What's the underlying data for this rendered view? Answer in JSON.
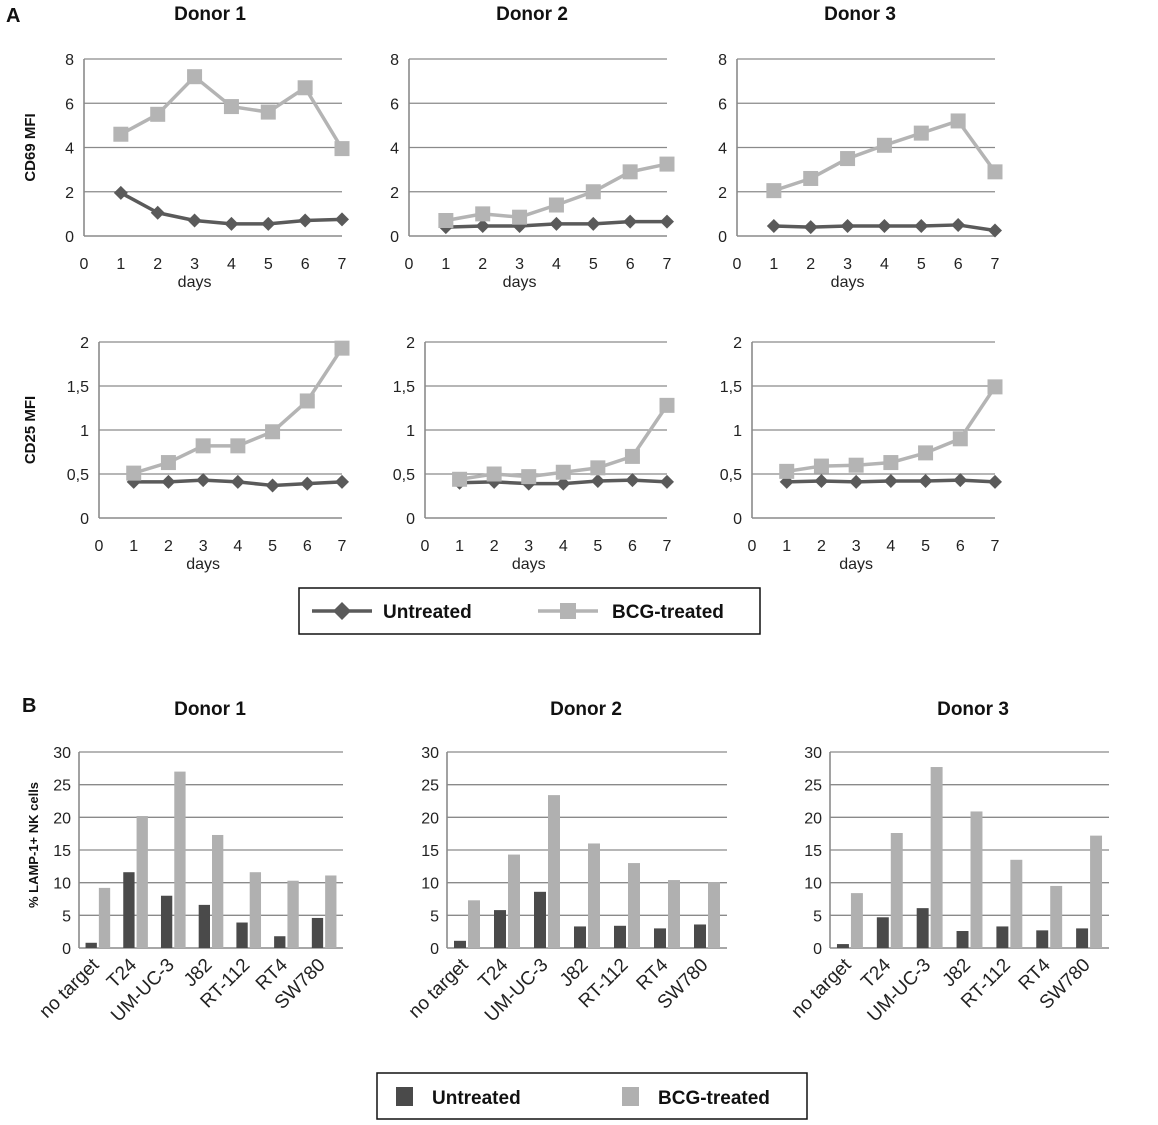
{
  "panel_a": {
    "letter": "A",
    "colors": {
      "untreated": "#5a5a5a",
      "bcg": "#b4b4b4",
      "grid": "#8a8a8a"
    },
    "legend": {
      "untreated": "Untreated",
      "bcg": "BCG-treated"
    }
  },
  "panel_b": {
    "letter": "B",
    "colors": {
      "untreated": "#4a4a4a",
      "bcg": "#b0b0b0",
      "grid": "#8a8a8a"
    },
    "legend": {
      "untreated": "Untreated",
      "bcg": "BCG-treated"
    }
  },
  "chart_data": [
    {
      "id": "a-cd69-d1",
      "type": "line",
      "title": "Donor 1",
      "ylabel": "CD69 MFI",
      "xlabel": "days",
      "x": [
        1,
        2,
        3,
        4,
        5,
        6,
        7
      ],
      "xlim": [
        0,
        7
      ],
      "ylim": [
        0,
        8
      ],
      "xticks": [
        "0",
        "1",
        "2",
        "3",
        "4",
        "5",
        "6",
        "7"
      ],
      "yticks": [
        "0",
        "2",
        "4",
        "6",
        "8"
      ],
      "series": [
        {
          "name": "Untreated",
          "values": [
            1.95,
            1.05,
            0.7,
            0.55,
            0.55,
            0.7,
            0.75
          ]
        },
        {
          "name": "BCG-treated",
          "values": [
            4.6,
            5.5,
            7.2,
            5.85,
            5.6,
            6.7,
            3.95
          ]
        }
      ]
    },
    {
      "id": "a-cd69-d2",
      "type": "line",
      "title": "Donor 2",
      "ylabel": "",
      "xlabel": "days",
      "x": [
        1,
        2,
        3,
        4,
        5,
        6,
        7
      ],
      "xlim": [
        0,
        7
      ],
      "ylim": [
        0,
        8
      ],
      "xticks": [
        "0",
        "1",
        "2",
        "3",
        "4",
        "5",
        "6",
        "7"
      ],
      "yticks": [
        "0",
        "2",
        "4",
        "6",
        "8"
      ],
      "series": [
        {
          "name": "Untreated",
          "values": [
            0.4,
            0.45,
            0.45,
            0.55,
            0.55,
            0.65,
            0.65
          ]
        },
        {
          "name": "BCG-treated",
          "values": [
            0.7,
            1.0,
            0.85,
            1.4,
            2.0,
            2.9,
            3.25
          ]
        }
      ]
    },
    {
      "id": "a-cd69-d3",
      "type": "line",
      "title": "Donor 3",
      "ylabel": "",
      "xlabel": "days",
      "x": [
        1,
        2,
        3,
        4,
        5,
        6,
        7
      ],
      "xlim": [
        0,
        7
      ],
      "ylim": [
        0,
        8
      ],
      "xticks": [
        "0",
        "1",
        "2",
        "3",
        "4",
        "5",
        "6",
        "7"
      ],
      "yticks": [
        "0",
        "2",
        "4",
        "6",
        "8"
      ],
      "series": [
        {
          "name": "Untreated",
          "values": [
            0.45,
            0.4,
            0.45,
            0.45,
            0.45,
            0.5,
            0.25
          ]
        },
        {
          "name": "BCG-treated",
          "values": [
            2.05,
            2.6,
            3.5,
            4.1,
            4.65,
            5.2,
            2.9
          ]
        }
      ]
    },
    {
      "id": "a-cd25-d1",
      "type": "line",
      "title": "",
      "ylabel": "CD25 MFI",
      "xlabel": "days",
      "x": [
        1,
        2,
        3,
        4,
        5,
        6,
        7
      ],
      "xlim": [
        0,
        7
      ],
      "ylim": [
        0,
        2
      ],
      "xticks": [
        "0",
        "1",
        "2",
        "3",
        "4",
        "5",
        "6",
        "7"
      ],
      "yticks": [
        "0",
        "0,5",
        "1",
        "1,5",
        "2"
      ],
      "series": [
        {
          "name": "Untreated",
          "values": [
            0.41,
            0.41,
            0.43,
            0.41,
            0.37,
            0.39,
            0.41
          ]
        },
        {
          "name": "BCG-treated",
          "values": [
            0.51,
            0.63,
            0.82,
            0.82,
            0.98,
            1.33,
            1.93
          ]
        }
      ]
    },
    {
      "id": "a-cd25-d2",
      "type": "line",
      "title": "",
      "ylabel": "",
      "xlabel": "days",
      "x": [
        1,
        2,
        3,
        4,
        5,
        6,
        7
      ],
      "xlim": [
        0,
        7
      ],
      "ylim": [
        0,
        2
      ],
      "xticks": [
        "0",
        "1",
        "2",
        "3",
        "4",
        "5",
        "6",
        "7"
      ],
      "yticks": [
        "0",
        "0,5",
        "1",
        "1,5",
        "2"
      ],
      "series": [
        {
          "name": "Untreated",
          "values": [
            0.4,
            0.41,
            0.39,
            0.39,
            0.42,
            0.43,
            0.41
          ]
        },
        {
          "name": "BCG-treated",
          "values": [
            0.44,
            0.5,
            0.47,
            0.52,
            0.57,
            0.7,
            1.28
          ]
        }
      ]
    },
    {
      "id": "a-cd25-d3",
      "type": "line",
      "title": "",
      "ylabel": "",
      "xlabel": "days",
      "x": [
        1,
        2,
        3,
        4,
        5,
        6,
        7
      ],
      "xlim": [
        0,
        7
      ],
      "ylim": [
        0,
        2
      ],
      "xticks": [
        "0",
        "1",
        "2",
        "3",
        "4",
        "5",
        "6",
        "7"
      ],
      "yticks": [
        "0",
        "0,5",
        "1",
        "1,5",
        "2"
      ],
      "series": [
        {
          "name": "Untreated",
          "values": [
            0.41,
            0.42,
            0.41,
            0.42,
            0.42,
            0.43,
            0.41
          ]
        },
        {
          "name": "BCG-treated",
          "values": [
            0.53,
            0.59,
            0.6,
            0.63,
            0.74,
            0.9,
            1.49
          ]
        }
      ]
    },
    {
      "id": "b-d1",
      "type": "bar",
      "title": "Donor 1",
      "ylabel": "% LAMP-1+ NK cells",
      "xlabel": "",
      "categories": [
        "no target",
        "T24",
        "UM-UC-3",
        "J82",
        "RT-112",
        "RT4",
        "SW780"
      ],
      "ylim": [
        0,
        30
      ],
      "yticks": [
        "0",
        "5",
        "10",
        "15",
        "20",
        "25",
        "30"
      ],
      "series": [
        {
          "name": "Untreated",
          "values": [
            0.8,
            11.6,
            8.0,
            6.6,
            3.9,
            1.8,
            4.6
          ]
        },
        {
          "name": "BCG-treated",
          "values": [
            9.2,
            20.2,
            27.0,
            17.3,
            11.6,
            10.3,
            11.1
          ]
        }
      ]
    },
    {
      "id": "b-d2",
      "type": "bar",
      "title": "Donor 2",
      "ylabel": "",
      "xlabel": "",
      "categories": [
        "no target",
        "T24",
        "UM-UC-3",
        "J82",
        "RT-112",
        "RT4",
        "SW780"
      ],
      "ylim": [
        0,
        30
      ],
      "yticks": [
        "0",
        "5",
        "10",
        "15",
        "20",
        "25",
        "30"
      ],
      "series": [
        {
          "name": "Untreated",
          "values": [
            1.1,
            5.8,
            8.6,
            3.3,
            3.4,
            3.0,
            3.6
          ]
        },
        {
          "name": "BCG-treated",
          "values": [
            7.3,
            14.3,
            23.4,
            16.0,
            13.0,
            10.4,
            10.1
          ]
        }
      ]
    },
    {
      "id": "b-d3",
      "type": "bar",
      "title": "Donor 3",
      "ylabel": "",
      "xlabel": "",
      "categories": [
        "no target",
        "T24",
        "UM-UC-3",
        "J82",
        "RT-112",
        "RT4",
        "SW780"
      ],
      "ylim": [
        0,
        30
      ],
      "yticks": [
        "0",
        "5",
        "10",
        "15",
        "20",
        "25",
        "30"
      ],
      "series": [
        {
          "name": "Untreated",
          "values": [
            0.6,
            4.7,
            6.1,
            2.6,
            3.3,
            2.7,
            3.0
          ]
        },
        {
          "name": "BCG-treated",
          "values": [
            8.4,
            17.6,
            27.7,
            20.9,
            13.5,
            9.5,
            17.2
          ]
        }
      ]
    }
  ]
}
